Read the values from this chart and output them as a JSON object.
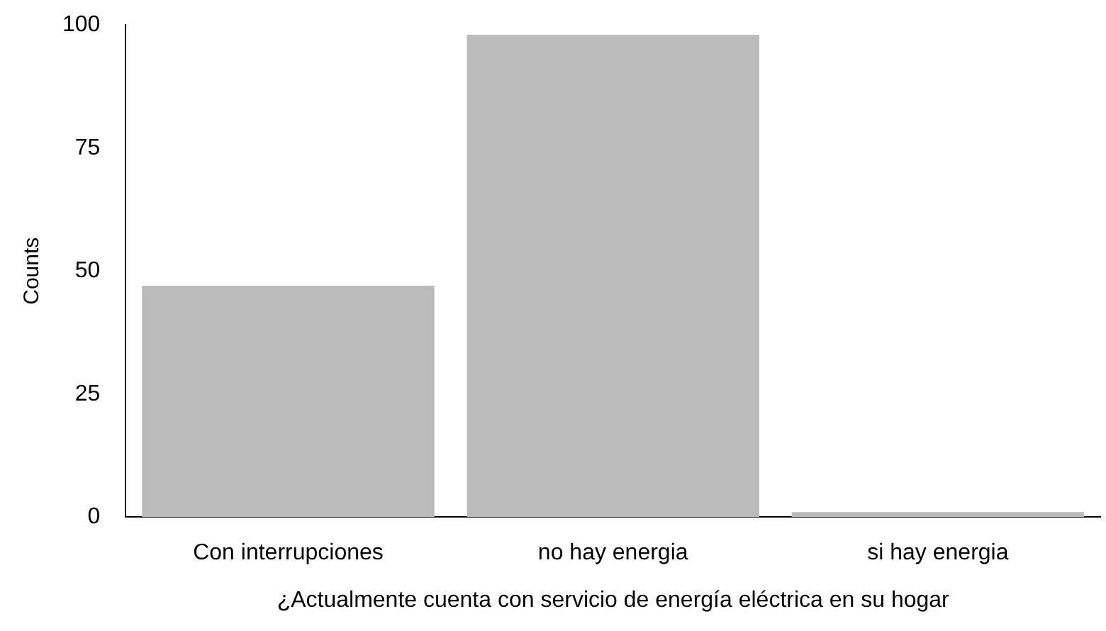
{
  "chart_data": {
    "type": "bar",
    "xlabel": "¿Actualmente cuenta con servicio de energía eléctrica en su hogar",
    "ylabel": "Counts",
    "categories": [
      "Con interrupciones",
      "no hay energia",
      "si hay energia"
    ],
    "values": [
      47,
      98,
      1
    ],
    "color": "#bbbbbb",
    "ylim": [
      0,
      100
    ],
    "yticks": [
      0,
      25,
      50,
      75,
      100
    ],
    "grid": false,
    "legend": false
  }
}
